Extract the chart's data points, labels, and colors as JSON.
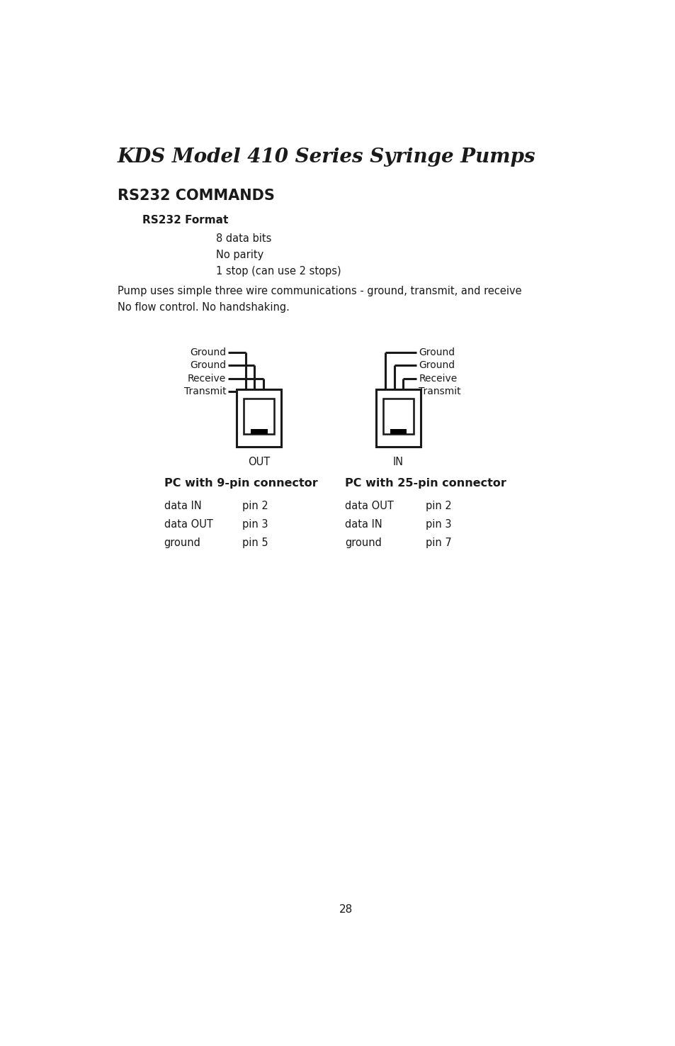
{
  "title": "KDS Model 410 Series Syringe Pumps",
  "section_title": "RS232 COMMANDS",
  "format_label": "RS232 Format",
  "format_items": [
    "8 data bits",
    "No parity",
    "1 stop (can use 2 stops)"
  ],
  "pump_desc_line1": "Pump uses simple three wire communications - ground, transmit, and receive",
  "pump_desc_line2": "No flow control. No handshaking.",
  "wire_labels_left": [
    "Ground",
    "Ground",
    "Receive",
    "Transmit"
  ],
  "wire_labels_right": [
    "Ground",
    "Ground",
    "Receive",
    "Transmit"
  ],
  "out_label": "OUT",
  "in_label": "IN",
  "pc9_title": "PC with 9-pin connector",
  "pc9_rows": [
    [
      "data IN",
      "pin 2"
    ],
    [
      "data OUT",
      "pin 3"
    ],
    [
      "ground",
      "pin 5"
    ]
  ],
  "pc25_title": "PC with 25-pin connector",
  "pc25_rows": [
    [
      "data OUT",
      "pin 2"
    ],
    [
      "data IN",
      "pin 3"
    ],
    [
      "ground",
      "pin 7"
    ]
  ],
  "page_number": "28",
  "bg_color": "#ffffff",
  "text_color": "#1a1a1a",
  "line_color": "#1a1a1a"
}
